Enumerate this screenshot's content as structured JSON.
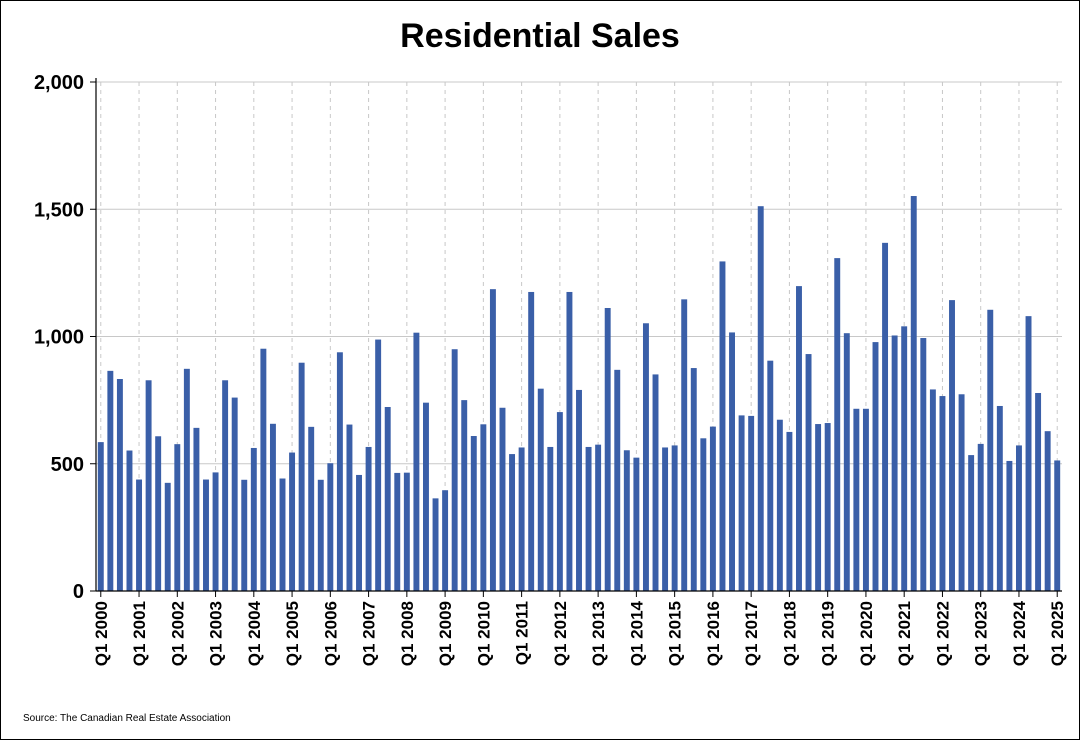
{
  "chart_data": {
    "type": "bar",
    "title": "Residential Sales",
    "source": "Source: The Canadian Real Estate Association",
    "xlabel": "",
    "ylabel": "",
    "ylim": [
      0,
      2000
    ],
    "yticks": [
      0,
      500,
      1000,
      1500,
      2000
    ],
    "ytick_labels": [
      "0",
      "500",
      "1,000",
      "1,500",
      "2,000"
    ],
    "grid": "horizontal solid, vertical dashed at each year",
    "bar_color": "#3A5FA8",
    "x_labels": [
      "Q1 2000",
      "Q1 2001",
      "Q1 2002",
      "Q1 2003",
      "Q1 2004",
      "Q1 2005",
      "Q1 2006",
      "Q1 2007",
      "Q1 2008",
      "Q1 2009",
      "Q1 2010",
      "Q1 2011",
      "Q1 2012",
      "Q1 2013",
      "Q1 2014",
      "Q1 2015",
      "Q1 2016",
      "Q1 2017",
      "Q1 2018",
      "Q1 2019",
      "Q1 2020",
      "Q1 2021",
      "Q1 2022",
      "Q1 2023",
      "Q1 2024",
      "Q1 2025"
    ],
    "categories": [
      "Q1 2000",
      "Q2 2000",
      "Q3 2000",
      "Q4 2000",
      "Q1 2001",
      "Q2 2001",
      "Q3 2001",
      "Q4 2001",
      "Q1 2002",
      "Q2 2002",
      "Q3 2002",
      "Q4 2002",
      "Q1 2003",
      "Q2 2003",
      "Q3 2003",
      "Q4 2003",
      "Q1 2004",
      "Q2 2004",
      "Q3 2004",
      "Q4 2004",
      "Q1 2005",
      "Q2 2005",
      "Q3 2005",
      "Q4 2005",
      "Q1 2006",
      "Q2 2006",
      "Q3 2006",
      "Q4 2006",
      "Q1 2007",
      "Q2 2007",
      "Q3 2007",
      "Q4 2007",
      "Q1 2008",
      "Q2 2008",
      "Q3 2008",
      "Q4 2008",
      "Q1 2009",
      "Q2 2009",
      "Q3 2009",
      "Q4 2009",
      "Q1 2010",
      "Q2 2010",
      "Q3 2010",
      "Q4 2010",
      "Q1 2011",
      "Q2 2011",
      "Q3 2011",
      "Q4 2011",
      "Q1 2012",
      "Q2 2012",
      "Q3 2012",
      "Q4 2012",
      "Q1 2013",
      "Q2 2013",
      "Q3 2013",
      "Q4 2013",
      "Q1 2014",
      "Q2 2014",
      "Q3 2014",
      "Q4 2014",
      "Q1 2015",
      "Q2 2015",
      "Q3 2015",
      "Q4 2015",
      "Q1 2016",
      "Q2 2016",
      "Q3 2016",
      "Q4 2016",
      "Q1 2017",
      "Q2 2017",
      "Q3 2017",
      "Q4 2017",
      "Q1 2018",
      "Q2 2018",
      "Q3 2018",
      "Q4 2018",
      "Q1 2019",
      "Q2 2019",
      "Q3 2019",
      "Q4 2019",
      "Q1 2020",
      "Q2 2020",
      "Q3 2020",
      "Q4 2020",
      "Q1 2021",
      "Q2 2021",
      "Q3 2021",
      "Q4 2021",
      "Q1 2022",
      "Q2 2022",
      "Q3 2022",
      "Q4 2022",
      "Q1 2023",
      "Q2 2023",
      "Q3 2023",
      "Q4 2023",
      "Q1 2024",
      "Q2 2024",
      "Q3 2024",
      "Q4 2024",
      "Q1 2025"
    ],
    "values": [
      585,
      865,
      833,
      552,
      438,
      828,
      608,
      425,
      577,
      873,
      641,
      438,
      466,
      828,
      760,
      437,
      562,
      952,
      657,
      442,
      544,
      897,
      645,
      437,
      502,
      938,
      654,
      456,
      566,
      988,
      723,
      464,
      465,
      1015,
      740,
      364,
      396,
      950,
      750,
      609,
      655,
      1186,
      720,
      538,
      564,
      1175,
      795,
      566,
      703,
      1175,
      790,
      566,
      575,
      1112,
      869,
      553,
      524,
      1052,
      851,
      564,
      572,
      1146,
      876,
      600,
      646,
      1295,
      1016,
      690,
      688,
      1512,
      905,
      673,
      625,
      1198,
      931,
      656,
      660,
      1308,
      1013,
      716,
      716,
      978,
      1368,
      1004,
      1040,
      1552,
      994,
      792,
      766,
      1143,
      773,
      534,
      578,
      1105,
      727,
      511,
      572,
      1080,
      778,
      628,
      513
    ]
  }
}
